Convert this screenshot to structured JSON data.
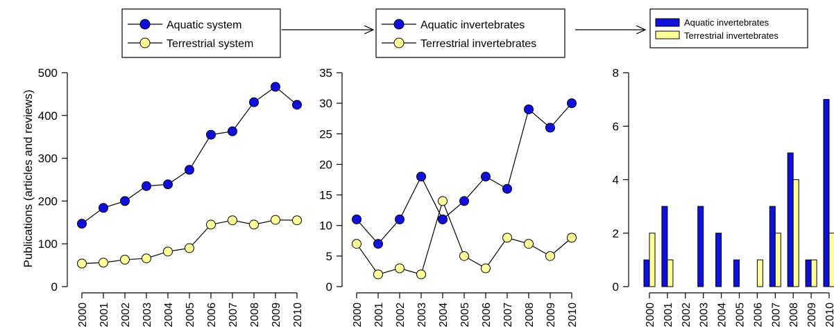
{
  "colors": {
    "aquatic_fill": "#1010dd",
    "terrestrial_fill": "#ffff99",
    "outline": "#000000",
    "background": "#ffffff"
  },
  "chart_data": [
    {
      "type": "line",
      "x": [
        "2000",
        "2001",
        "2002",
        "2003",
        "2004",
        "2005",
        "2006",
        "2007",
        "2008",
        "2009",
        "2010"
      ],
      "ylabel": "Publications (articles and reviews)",
      "ylim": [
        0,
        500
      ],
      "yticks": [
        0,
        100,
        200,
        300,
        400,
        500
      ],
      "grid": false,
      "legend_position": "top",
      "series": [
        {
          "name": "Aquatic system",
          "values": [
            147,
            184,
            200,
            235,
            239,
            273,
            355,
            363,
            431,
            467,
            425
          ]
        },
        {
          "name": "Terrestrial system",
          "values": [
            54,
            56,
            63,
            66,
            82,
            90,
            145,
            155,
            145,
            156,
            155
          ]
        }
      ]
    },
    {
      "type": "line",
      "x": [
        "2000",
        "2001",
        "2002",
        "2003",
        "2004",
        "2005",
        "2006",
        "2007",
        "2008",
        "2009",
        "2010"
      ],
      "ylim": [
        0,
        35
      ],
      "yticks": [
        0,
        5,
        10,
        15,
        20,
        25,
        30,
        35
      ],
      "grid": false,
      "legend_position": "top",
      "series": [
        {
          "name": "Aquatic invertebrates",
          "values": [
            11,
            7,
            11,
            18,
            11,
            14,
            18,
            16,
            29,
            26,
            30
          ]
        },
        {
          "name": "Terrestrial invertebrates",
          "values": [
            7,
            2,
            3,
            2,
            14,
            5,
            3,
            8,
            7,
            5,
            8
          ]
        }
      ]
    },
    {
      "type": "bar",
      "categories": [
        "2000",
        "2001",
        "2002",
        "2003",
        "2004",
        "2005",
        "2006",
        "2007",
        "2008",
        "2009",
        "2010"
      ],
      "ylim": [
        0,
        8
      ],
      "yticks": [
        0,
        2,
        4,
        6,
        8
      ],
      "grid": false,
      "legend_position": "top",
      "series": [
        {
          "name": "Aquatic invertebrates",
          "values": [
            1,
            3,
            0,
            3,
            2,
            1,
            0,
            3,
            5,
            1,
            7
          ]
        },
        {
          "name": "Terrestrial invertebrates",
          "values": [
            2,
            1,
            0,
            0,
            0,
            0,
            1,
            2,
            4,
            1,
            2
          ]
        }
      ]
    }
  ]
}
